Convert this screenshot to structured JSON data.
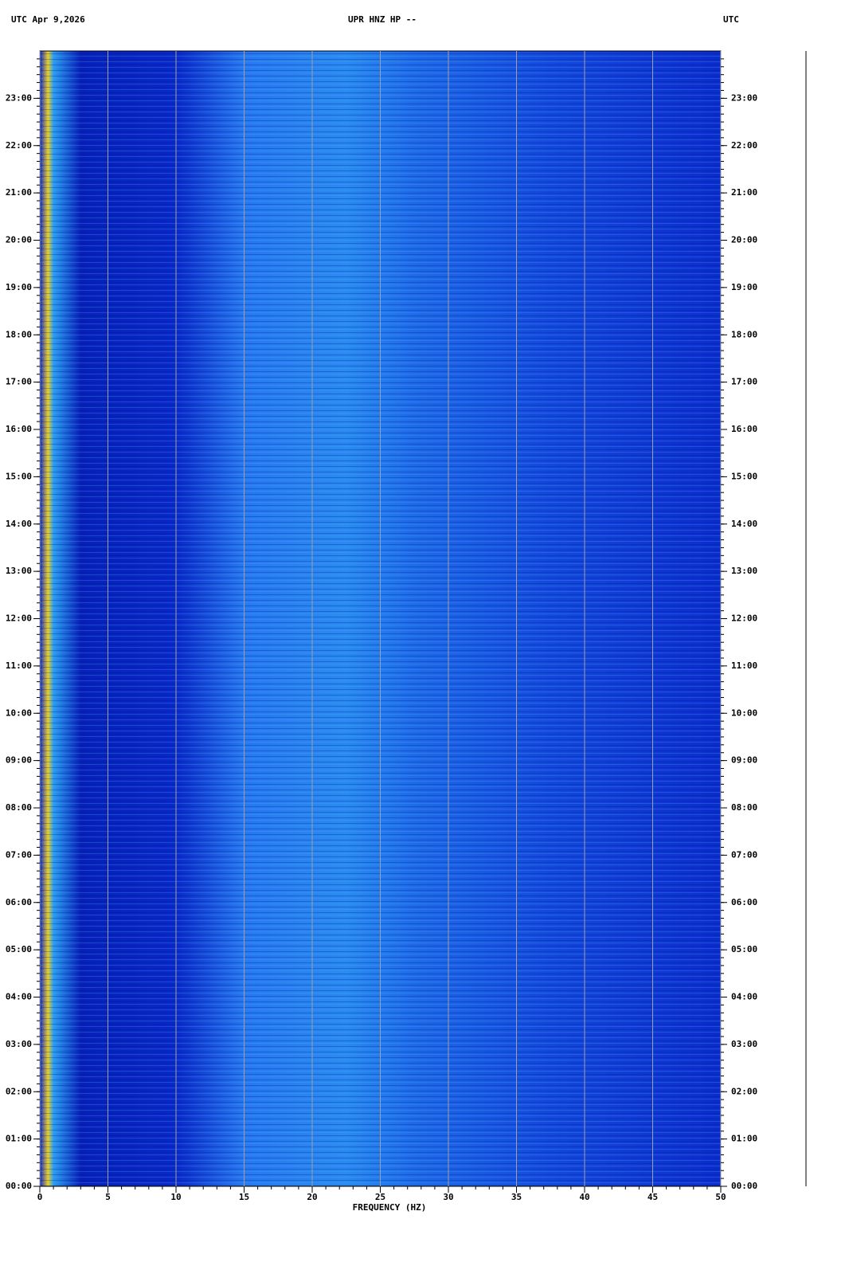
{
  "chart_data": {
    "type": "spectrogram",
    "title": "UPR HNZ HP --",
    "date_label": "UTC  Apr 9,2026",
    "right_label": "UTC",
    "x_label": "FREQUENCY (HZ)",
    "xlim": [
      0,
      50
    ],
    "xticks": [
      0,
      5,
      10,
      15,
      20,
      25,
      30,
      35,
      40,
      45,
      50
    ],
    "ylim": [
      0,
      24
    ],
    "yticks": [
      {
        "value": 0,
        "label": "00:00"
      },
      {
        "value": 1,
        "label": "01:00"
      },
      {
        "value": 2,
        "label": "02:00"
      },
      {
        "value": 3,
        "label": "03:00"
      },
      {
        "value": 4,
        "label": "04:00"
      },
      {
        "value": 5,
        "label": "05:00"
      },
      {
        "value": 6,
        "label": "06:00"
      },
      {
        "value": 7,
        "label": "07:00"
      },
      {
        "value": 8,
        "label": "08:00"
      },
      {
        "value": 9,
        "label": "09:00"
      },
      {
        "value": 10,
        "label": "10:00"
      },
      {
        "value": 11,
        "label": "11:00"
      },
      {
        "value": 12,
        "label": "12:00"
      },
      {
        "value": 13,
        "label": "13:00"
      },
      {
        "value": 14,
        "label": "14:00"
      },
      {
        "value": 15,
        "label": "15:00"
      },
      {
        "value": 16,
        "label": "16:00"
      },
      {
        "value": 17,
        "label": "17:00"
      },
      {
        "value": 18,
        "label": "18:00"
      },
      {
        "value": 19,
        "label": "19:00"
      },
      {
        "value": 20,
        "label": "20:00"
      },
      {
        "value": 21,
        "label": "21:00"
      },
      {
        "value": 22,
        "label": "22:00"
      },
      {
        "value": 23,
        "label": "23:00"
      }
    ],
    "grid": true
  }
}
